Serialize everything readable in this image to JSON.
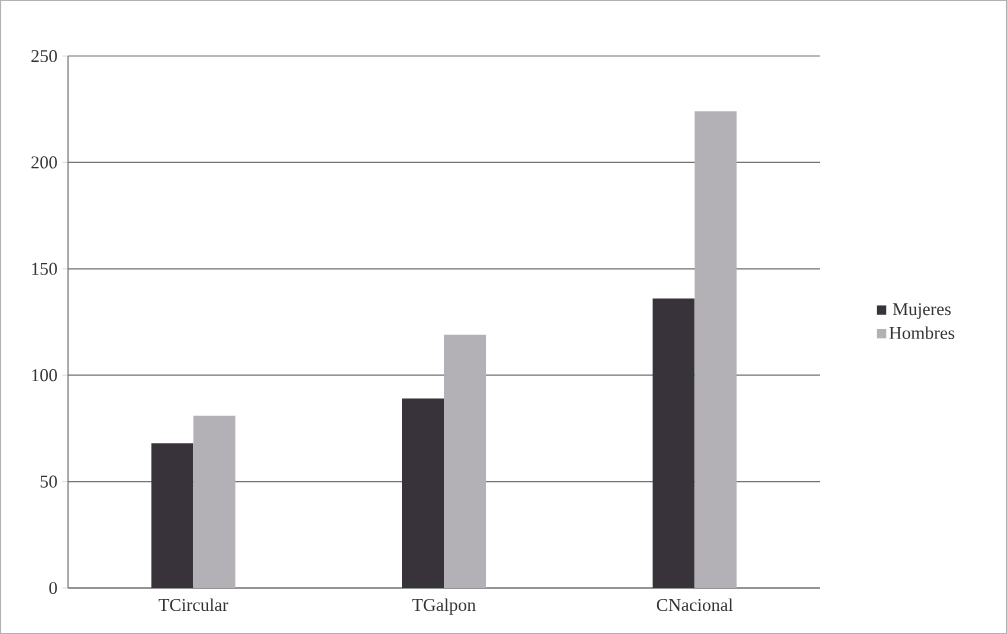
{
  "chart_data": {
    "type": "bar",
    "categories": [
      "TCircular",
      "TGalpon",
      "CNacional"
    ],
    "series": [
      {
        "name": "Mujeres",
        "color": "#38323a",
        "values": [
          68,
          89,
          136
        ]
      },
      {
        "name": "Hombres",
        "color": "#b4b1b6",
        "values": [
          81,
          119,
          224
        ]
      }
    ],
    "ylim": [
      0,
      250
    ],
    "yticks": [
      0,
      50,
      100,
      150,
      200,
      250
    ],
    "grid": "y",
    "legend": "right"
  }
}
